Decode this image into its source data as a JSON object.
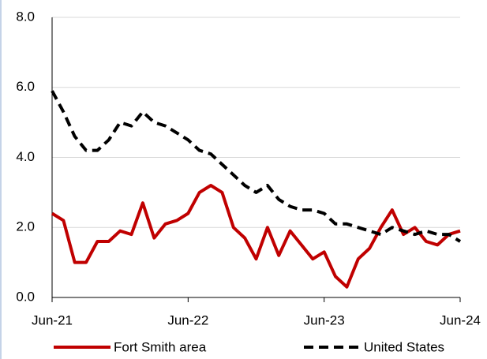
{
  "chart_data": {
    "type": "line",
    "categories": [
      "Jun-21",
      null,
      null,
      null,
      null,
      null,
      null,
      null,
      null,
      null,
      null,
      null,
      "Jun-22",
      null,
      null,
      null,
      null,
      null,
      null,
      null,
      null,
      null,
      null,
      null,
      "Jun-23",
      null,
      null,
      null,
      null,
      null,
      null,
      null,
      null,
      null,
      null,
      null,
      "Jun-24"
    ],
    "series": [
      {
        "name": "Fort Smith area",
        "color": "#c00000",
        "dash": "solid",
        "values": [
          2.4,
          2.2,
          1.0,
          1.0,
          1.6,
          1.6,
          1.9,
          1.8,
          2.7,
          1.7,
          2.1,
          2.2,
          2.4,
          3.0,
          3.2,
          3.0,
          2.0,
          1.7,
          1.1,
          2.0,
          1.2,
          1.9,
          1.5,
          1.1,
          1.3,
          0.6,
          0.3,
          1.1,
          1.4,
          2.0,
          2.5,
          1.8,
          2.0,
          1.6,
          1.5,
          1.8,
          1.9
        ]
      },
      {
        "name": "United States",
        "color": "#000000",
        "dash": "dashed",
        "values": [
          5.9,
          5.3,
          4.6,
          4.2,
          4.2,
          4.5,
          5.0,
          4.9,
          5.3,
          5.0,
          4.9,
          4.7,
          4.5,
          4.2,
          4.1,
          3.8,
          3.5,
          3.2,
          3.0,
          3.2,
          2.8,
          2.6,
          2.5,
          2.5,
          2.4,
          2.1,
          2.1,
          2.0,
          1.9,
          1.8,
          2.0,
          1.9,
          1.8,
          1.9,
          1.8,
          1.8,
          1.6
        ]
      }
    ],
    "ylim": [
      0,
      8
    ],
    "yticks": [
      {
        "value": 0,
        "label": "0.0"
      },
      {
        "value": 2,
        "label": "2.0"
      },
      {
        "value": 4,
        "label": "4.0"
      },
      {
        "value": 6,
        "label": "6.0"
      },
      {
        "value": 8,
        "label": "8.0"
      }
    ],
    "grid": true,
    "legend": "bottom"
  }
}
